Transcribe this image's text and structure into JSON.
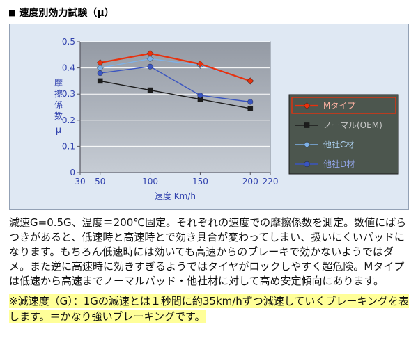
{
  "header": {
    "bullet": "■",
    "title": "速度別効力試験（μ）"
  },
  "chart_data": {
    "type": "line",
    "title": "",
    "xlabel": "速度 Km/h",
    "ylabel": "摩擦係数 μ",
    "x": [
      50,
      100,
      150,
      200
    ],
    "x_ticks": [
      30,
      50,
      100,
      150,
      200,
      220
    ],
    "y_ticks": [
      0,
      0.1,
      0.2,
      0.3,
      0.4,
      0.5
    ],
    "xlim": [
      30,
      220
    ],
    "ylim": [
      0,
      0.5
    ],
    "grid": "horizontal",
    "legend_position": "right",
    "series": [
      {
        "name": "Mタイプ",
        "color": "#e8320e",
        "legend_text_color": "#ffb3a3",
        "marker": "diamond",
        "values": [
          0.42,
          0.455,
          0.415,
          0.35
        ],
        "highlighted": true
      },
      {
        "name": "ノーマル(OEM)",
        "color": "#1c1c1c",
        "legend_text_color": "#c8c8c8",
        "marker": "square",
        "values": [
          0.35,
          0.315,
          0.28,
          0.245
        ],
        "highlighted": false
      },
      {
        "name": "他社C材",
        "color": "#7fb2e8",
        "legend_text_color": "#aed2f2",
        "marker": "diamond",
        "values": [
          0.4,
          0.435,
          0.41,
          0.35
        ],
        "highlighted": false
      },
      {
        "name": "他社D材",
        "color": "#3a55c0",
        "legend_text_color": "#93a6ea",
        "marker": "circle",
        "values": [
          0.38,
          0.405,
          0.295,
          0.27
        ],
        "highlighted": false
      }
    ]
  },
  "colors": {
    "chart_bg": "#dfe8f3",
    "plot_top": "#949aa4",
    "plot_bottom": "#c6ccd4",
    "grid": "#ffffff",
    "axis_text": "#3142ae",
    "axis_line": "#555560",
    "legend_bg": "#4c564e",
    "legend_border": "#1a1a1a",
    "highlight_box": "#e8320e",
    "note_highlight_bg": "#ffff99"
  },
  "description": "減速G=0.5G、温度＝200℃固定。それぞれの速度での摩擦係数を測定。数値にばらつきがあると、低速時と高速時とで効き具合が変わってしまい、扱いにくいパッドになります。もちろん低速時には効いても高速からのブレーキで効かないようではダメ。また逆に高速時に効きすぎるようではタイヤがロックしやすく超危険。Mタイプは低速から高速までノーマルパッド・他社材に対して高め安定傾向にあります。",
  "note": "※減速度（G）：1Gの減速とは１秒間に約35km/hずつ減速していくブレーキングを表します。＝かなり強いブレーキングです。"
}
